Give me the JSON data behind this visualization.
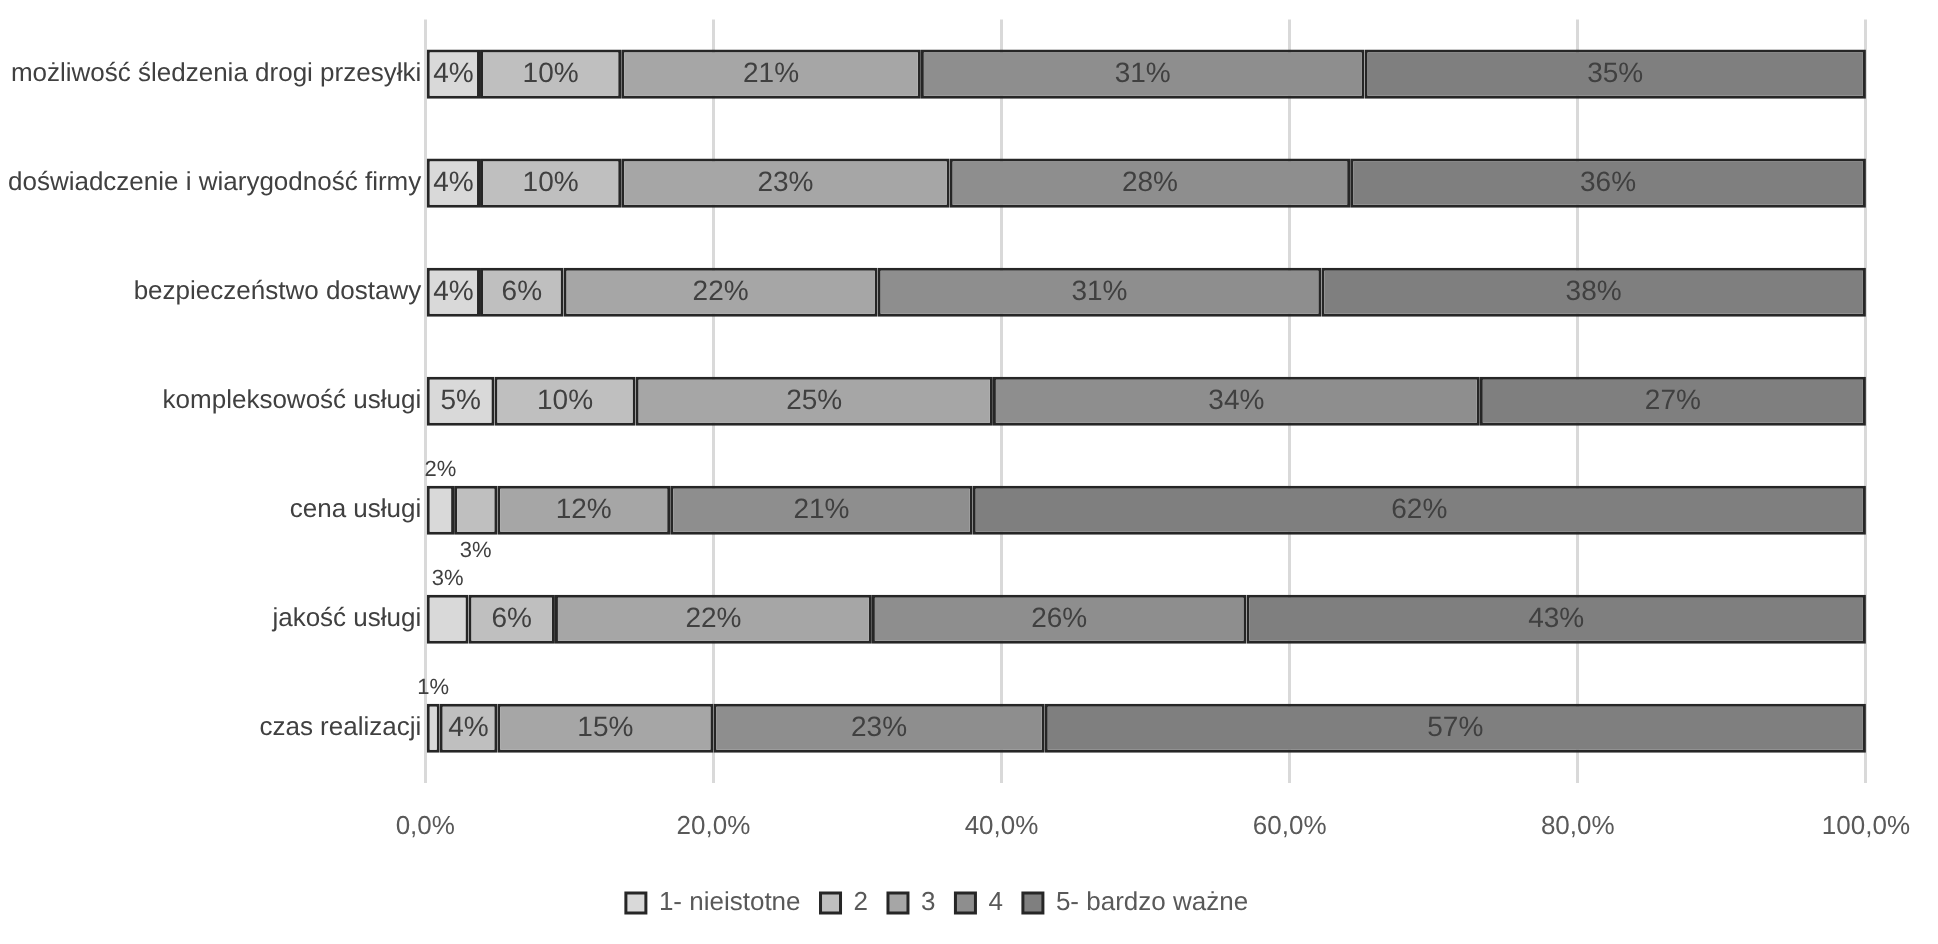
{
  "chart_data": {
    "type": "bar",
    "orientation": "horizontal",
    "stacked": true,
    "categories": [
      "możliwość śledzenia drogi przesyłki",
      "doświadczenie i wiarygodność firmy",
      "bezpieczeństwo dostawy",
      "kompleksowość usługi",
      "cena usługi",
      "jakość usługi",
      "czas realizacji"
    ],
    "series": [
      {
        "name": "1- nieistotne",
        "color": "#d9d9d9",
        "values": [
          3.8,
          3.8,
          3.8,
          4.8,
          2,
          3,
          1
        ],
        "value_labels": [
          "4%",
          "4%",
          "4%",
          "5%",
          "2%",
          "3%",
          "1%"
        ]
      },
      {
        "name": "2",
        "color": "#bfbfbf",
        "values": [
          9.8,
          9.8,
          5.8,
          9.8,
          3,
          6,
          4
        ],
        "value_labels": [
          "10%",
          "10%",
          "6%",
          "10%",
          "3%",
          "6%",
          "4%"
        ]
      },
      {
        "name": "3",
        "color": "#a6a6a6",
        "values": [
          20.8,
          22.8,
          21.8,
          24.8,
          12,
          22,
          15
        ],
        "value_labels": [
          "21%",
          "23%",
          "22%",
          "25%",
          "12%",
          "22%",
          "15%"
        ]
      },
      {
        "name": "4",
        "color": "#8e8e8e",
        "values": [
          30.8,
          27.8,
          30.8,
          33.8,
          21,
          26,
          23
        ],
        "value_labels": [
          "31%",
          "28%",
          "31%",
          "34%",
          "21%",
          "26%",
          "23%"
        ]
      },
      {
        "name": "5- bardzo ważne",
        "color": "#7f7f7f",
        "values": [
          34.8,
          35.8,
          37.8,
          26.8,
          62,
          43,
          57
        ],
        "value_labels": [
          "35%",
          "36%",
          "38%",
          "27%",
          "62%",
          "43%",
          "57%"
        ]
      }
    ],
    "xlim": [
      0,
      100
    ],
    "xticks": [
      {
        "value": 0,
        "label": "0,0%"
      },
      {
        "value": 20,
        "label": "20,0%"
      },
      {
        "value": 40,
        "label": "40,0%"
      },
      {
        "value": 60,
        "label": "60,0%"
      },
      {
        "value": 80,
        "label": "80,0%"
      },
      {
        "value": 100,
        "label": "100,0%"
      }
    ],
    "grid": "x",
    "legend": "bottom"
  }
}
